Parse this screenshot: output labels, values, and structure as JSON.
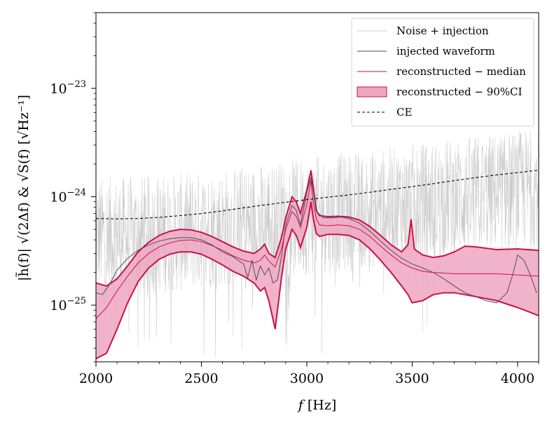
{
  "chart_data": {
    "type": "line",
    "title": "",
    "xlabel": "f [Hz]",
    "ylabel": "|h̃(f)| √(2Δf) & √S(f)   [√Hz⁻¹]",
    "xlim": [
      2000,
      4100
    ],
    "ylim": [
      3e-26,
      5e-23
    ],
    "yscale": "log",
    "x_ticks": [
      2000,
      2500,
      3000,
      3500,
      4000
    ],
    "x_tick_labels": [
      "2000",
      "2500",
      "3000",
      "3500",
      "4000"
    ],
    "y_ticks": [
      1e-25,
      1e-24,
      1e-23
    ],
    "y_tick_labels": [
      {
        "base": "10",
        "exp": "−25"
      },
      {
        "base": "10",
        "exp": "−24"
      },
      {
        "base": "10",
        "exp": "−23"
      }
    ],
    "legend_position": "top-right",
    "legend": [
      {
        "label": "Noise + injection",
        "style": "noise"
      },
      {
        "label": "injected waveform",
        "style": "injected"
      },
      {
        "label": "reconstructed − median",
        "style": "median"
      },
      {
        "label": "reconstructed − 90%CI",
        "style": "ci"
      },
      {
        "label": "CE",
        "style": "ce"
      }
    ],
    "colors": {
      "noise": "#cccccc",
      "injected": "#4a4e5e",
      "median": "#c8124a",
      "ci_fill": "#eea6bf",
      "ci_edge": "#c8124a",
      "ce": "#000000"
    },
    "series": [
      {
        "name": "CE",
        "x": [
          2000,
          2100,
          2200,
          2300,
          2400,
          2500,
          2600,
          2700,
          2800,
          2900,
          3000,
          3100,
          3200,
          3300,
          3400,
          3500,
          3600,
          3700,
          3800,
          3900,
          4000,
          4100
        ],
        "y": [
          6.3e-25,
          6.25e-25,
          6.3e-25,
          6.45e-25,
          6.7e-25,
          7e-25,
          7.4e-25,
          7.9e-25,
          8.4e-25,
          8.9e-25,
          9.4e-25,
          9.9e-25,
          1.04e-24,
          1.1e-24,
          1.17e-24,
          1.24e-24,
          1.32e-24,
          1.41e-24,
          1.5e-24,
          1.59e-24,
          1.67e-24,
          1.76e-24
        ]
      },
      {
        "name": "reconstructed − median",
        "x": [
          2000,
          2050,
          2100,
          2150,
          2200,
          2250,
          2300,
          2350,
          2400,
          2450,
          2500,
          2550,
          2600,
          2650,
          2700,
          2750,
          2780,
          2800,
          2820,
          2850,
          2880,
          2900,
          2930,
          2950,
          2970,
          3000,
          3020,
          3030,
          3045,
          3060,
          3100,
          3150,
          3200,
          3250,
          3300,
          3350,
          3400,
          3450,
          3500,
          3550,
          3600,
          3700,
          3800,
          3900,
          4000,
          4100
        ],
        "y": [
          7.5e-26,
          9.5e-26,
          1.35e-25,
          1.85e-25,
          2.45e-25,
          3e-25,
          3.45e-25,
          3.75e-25,
          3.95e-25,
          4e-25,
          3.85e-25,
          3.55e-25,
          3.2e-25,
          2.85e-25,
          2.6e-25,
          2.45e-25,
          2.6e-25,
          2.9e-25,
          2.55e-25,
          2.25e-25,
          3.3e-25,
          5e-25,
          7.3e-25,
          6.6e-25,
          5.2e-25,
          8.5e-25,
          1.4e-24,
          9e-25,
          6.3e-25,
          5.5e-25,
          5.4e-25,
          5.5e-25,
          5.4e-25,
          5e-25,
          4.3e-25,
          3.5e-25,
          2.9e-25,
          2.45e-25,
          2.2e-25,
          2.05e-25,
          2e-25,
          1.95e-25,
          1.95e-25,
          1.95e-25,
          1.9e-25,
          1.85e-25
        ]
      },
      {
        "name": "reconstructed − 90%CI upper",
        "x": [
          2000,
          2050,
          2100,
          2150,
          2200,
          2250,
          2300,
          2350,
          2400,
          2450,
          2500,
          2550,
          2600,
          2650,
          2700,
          2750,
          2780,
          2800,
          2820,
          2850,
          2880,
          2900,
          2930,
          2950,
          2970,
          3000,
          3020,
          3030,
          3045,
          3060,
          3100,
          3150,
          3200,
          3250,
          3300,
          3350,
          3400,
          3450,
          3480,
          3495,
          3510,
          3550,
          3600,
          3650,
          3700,
          3750,
          3800,
          3900,
          4000,
          4100
        ],
        "y": [
          1.6e-25,
          1.5e-25,
          1.75e-25,
          2.3e-25,
          3.1e-25,
          3.8e-25,
          4.4e-25,
          4.8e-25,
          5e-25,
          4.95e-25,
          4.7e-25,
          4.3e-25,
          3.85e-25,
          3.45e-25,
          3.15e-25,
          3e-25,
          3.3e-25,
          3.65e-25,
          3e-25,
          2.75e-25,
          4.2e-25,
          6.4e-25,
          1e-24,
          9e-25,
          7e-25,
          1.15e-24,
          1.75e-24,
          1.25e-24,
          7.5e-25,
          6.7e-25,
          6.55e-25,
          6.6e-25,
          6.5e-25,
          6.1e-25,
          5.3e-25,
          4.4e-25,
          3.6e-25,
          3.1e-25,
          3.6e-25,
          6.2e-25,
          3.3e-25,
          2.9e-25,
          2.75e-25,
          2.85e-25,
          3.1e-25,
          3.5e-25,
          3.45e-25,
          3.25e-25,
          3.3e-25,
          3.2e-25
        ]
      },
      {
        "name": "reconstructed − 90%CI lower",
        "x": [
          2000,
          2050,
          2100,
          2150,
          2200,
          2250,
          2300,
          2350,
          2400,
          2450,
          2500,
          2550,
          2600,
          2650,
          2700,
          2750,
          2780,
          2800,
          2820,
          2850,
          2880,
          2900,
          2930,
          2950,
          2970,
          3000,
          3020,
          3030,
          3045,
          3060,
          3100,
          3150,
          3200,
          3250,
          3300,
          3350,
          3400,
          3450,
          3480,
          3500,
          3550,
          3600,
          3650,
          3700,
          3800,
          3900,
          4000,
          4100
        ],
        "y": [
          3.2e-26,
          3.6e-26,
          6e-26,
          1.05e-25,
          1.65e-25,
          2.2e-25,
          2.65e-25,
          2.95e-25,
          3.1e-25,
          3.1e-25,
          2.95e-25,
          2.65e-25,
          2.35e-25,
          2.05e-25,
          1.85e-25,
          1.6e-25,
          1.35e-25,
          1.45e-25,
          1.1e-25,
          6e-26,
          1.8e-25,
          3.3e-25,
          5e-25,
          4.4e-25,
          3.4e-25,
          5.2e-25,
          9e-25,
          6.4e-25,
          4.6e-25,
          4.3e-25,
          4.5e-25,
          4.5e-25,
          4.4e-25,
          4e-25,
          3.3e-25,
          2.6e-25,
          2e-25,
          1.5e-25,
          1.25e-25,
          1.05e-25,
          1.1e-25,
          1.25e-25,
          1.3e-25,
          1.3e-25,
          1.2e-25,
          1.1e-25,
          9.5e-26,
          8e-26
        ]
      },
      {
        "name": "injected waveform",
        "x": [
          2000,
          2030,
          2060,
          2100,
          2150,
          2200,
          2250,
          2300,
          2350,
          2400,
          2450,
          2500,
          2550,
          2600,
          2650,
          2700,
          2720,
          2740,
          2760,
          2780,
          2800,
          2820,
          2840,
          2860,
          2880,
          2900,
          2930,
          2950,
          2970,
          3000,
          3020,
          3035,
          3050,
          3080,
          3120,
          3160,
          3200,
          3250,
          3300,
          3350,
          3400,
          3450,
          3500,
          3550,
          3600,
          3650,
          3700,
          3750,
          3800,
          3850,
          3900,
          3950,
          3980,
          4000,
          4030,
          4060,
          4090
        ],
        "y": [
          1.3e-25,
          1.25e-25,
          1.5e-25,
          2.1e-25,
          2.7e-25,
          3.2e-25,
          3.6e-25,
          3.9e-25,
          4.1e-25,
          4.2e-25,
          4.2e-25,
          4e-25,
          3.6e-25,
          3.1e-25,
          2.8e-25,
          2.4e-25,
          1.8e-25,
          2.6e-25,
          1.7e-25,
          2.3e-25,
          1.9e-25,
          2.2e-25,
          1.6e-25,
          1.7e-25,
          2.8e-25,
          5.5e-25,
          8.3e-25,
          7.5e-25,
          5.5e-25,
          1.1e-24,
          1.5e-24,
          1e-24,
          7.2e-25,
          6.4e-25,
          6.4e-25,
          6.5e-25,
          6.3e-25,
          5.7e-25,
          4.8e-25,
          3.9e-25,
          3.2e-25,
          2.7e-25,
          2.4e-25,
          2.2e-25,
          2e-25,
          1.75e-25,
          1.5e-25,
          1.3e-25,
          1.2e-25,
          1.1e-25,
          1.05e-25,
          1.3e-25,
          2e-25,
          2.9e-25,
          2.6e-25,
          1.9e-25,
          1.3e-25
        ]
      }
    ]
  }
}
